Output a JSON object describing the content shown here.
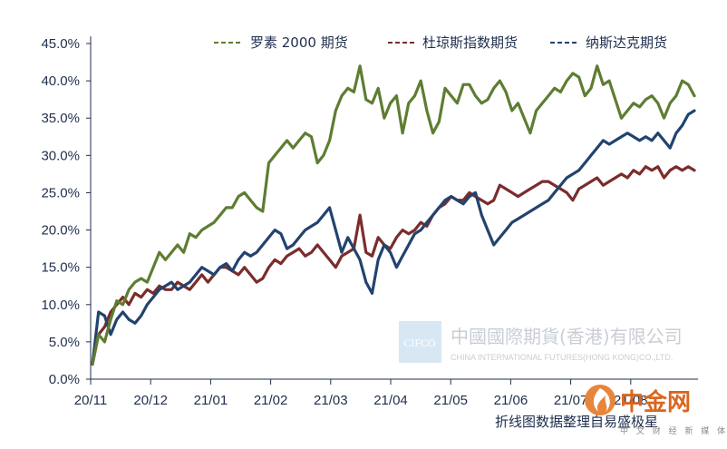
{
  "chart_data": {
    "type": "line",
    "title": "",
    "xlabel": "",
    "ylabel": "",
    "ylim": [
      0,
      0.45
    ],
    "y_ticks": [
      "0.0%",
      "5.0%",
      "10.0%",
      "15.0%",
      "20.0%",
      "25.0%",
      "30.0%",
      "35.0%",
      "40.0%",
      "45.0%"
    ],
    "x_ticks": [
      "20/11",
      "20/12",
      "21/01",
      "21/02",
      "21/03",
      "21/04",
      "21/05",
      "21/06",
      "21/07",
      "21/08"
    ],
    "grid": false,
    "legend_position": "top-right",
    "x_start": "2020-11-02",
    "series": [
      {
        "name": "罗素 2000 期货",
        "color": "#5e7d32",
        "dash": "dashed-legend",
        "values": [
          0.02,
          0.06,
          0.05,
          0.08,
          0.105,
          0.1,
          0.12,
          0.13,
          0.135,
          0.13,
          0.15,
          0.17,
          0.16,
          0.17,
          0.18,
          0.17,
          0.195,
          0.19,
          0.2,
          0.205,
          0.21,
          0.22,
          0.23,
          0.23,
          0.245,
          0.25,
          0.24,
          0.23,
          0.225,
          0.29,
          0.3,
          0.31,
          0.32,
          0.31,
          0.32,
          0.33,
          0.325,
          0.29,
          0.3,
          0.32,
          0.36,
          0.38,
          0.39,
          0.385,
          0.42,
          0.375,
          0.37,
          0.39,
          0.35,
          0.37,
          0.38,
          0.33,
          0.37,
          0.38,
          0.4,
          0.36,
          0.33,
          0.345,
          0.39,
          0.38,
          0.37,
          0.395,
          0.395,
          0.38,
          0.37,
          0.375,
          0.39,
          0.4,
          0.385,
          0.36,
          0.37,
          0.35,
          0.33,
          0.36,
          0.37,
          0.38,
          0.39,
          0.385,
          0.4,
          0.41,
          0.405,
          0.38,
          0.39,
          0.42,
          0.395,
          0.4,
          0.375,
          0.35,
          0.36,
          0.37,
          0.365,
          0.375,
          0.38,
          0.37,
          0.35,
          0.37,
          0.38,
          0.4,
          0.395,
          0.38
        ],
        "values_note": ""
      },
      {
        "name": "杜琼斯指数期货",
        "color": "#7b2c2c",
        "values": [
          0.02,
          0.06,
          0.07,
          0.09,
          0.1,
          0.11,
          0.1,
          0.115,
          0.11,
          0.12,
          0.115,
          0.125,
          0.12,
          0.12,
          0.13,
          0.125,
          0.12,
          0.13,
          0.14,
          0.13,
          0.14,
          0.15,
          0.15,
          0.145,
          0.14,
          0.15,
          0.14,
          0.13,
          0.135,
          0.15,
          0.16,
          0.155,
          0.165,
          0.17,
          0.175,
          0.165,
          0.17,
          0.18,
          0.17,
          0.16,
          0.15,
          0.165,
          0.17,
          0.175,
          0.22,
          0.17,
          0.165,
          0.19,
          0.18,
          0.175,
          0.19,
          0.2,
          0.195,
          0.2,
          0.21,
          0.205,
          0.22,
          0.23,
          0.235,
          0.245,
          0.24,
          0.24,
          0.25,
          0.245,
          0.24,
          0.235,
          0.24,
          0.26,
          0.255,
          0.25,
          0.245,
          0.25,
          0.255,
          0.26,
          0.265,
          0.265,
          0.26,
          0.255,
          0.25,
          0.24,
          0.255,
          0.26,
          0.265,
          0.27,
          0.26,
          0.265,
          0.27,
          0.275,
          0.27,
          0.28,
          0.275,
          0.285,
          0.28,
          0.285,
          0.27,
          0.28,
          0.285,
          0.28,
          0.285,
          0.28
        ],
        "values_note": ""
      },
      {
        "name": "纳斯达克期货",
        "color": "#22436e",
        "values": [
          0.02,
          0.09,
          0.085,
          0.06,
          0.08,
          0.09,
          0.08,
          0.075,
          0.085,
          0.1,
          0.11,
          0.12,
          0.125,
          0.13,
          0.12,
          0.125,
          0.13,
          0.14,
          0.15,
          0.145,
          0.14,
          0.15,
          0.155,
          0.145,
          0.16,
          0.17,
          0.165,
          0.17,
          0.18,
          0.19,
          0.2,
          0.195,
          0.175,
          0.18,
          0.19,
          0.2,
          0.205,
          0.21,
          0.22,
          0.23,
          0.2,
          0.17,
          0.19,
          0.175,
          0.16,
          0.13,
          0.115,
          0.16,
          0.18,
          0.17,
          0.15,
          0.165,
          0.18,
          0.195,
          0.2,
          0.21,
          0.22,
          0.23,
          0.24,
          0.245,
          0.24,
          0.235,
          0.245,
          0.25,
          0.22,
          0.2,
          0.18,
          0.19,
          0.2,
          0.21,
          0.215,
          0.22,
          0.225,
          0.23,
          0.235,
          0.24,
          0.25,
          0.26,
          0.27,
          0.275,
          0.28,
          0.29,
          0.3,
          0.31,
          0.32,
          0.315,
          0.32,
          0.325,
          0.33,
          0.325,
          0.32,
          0.325,
          0.32,
          0.33,
          0.32,
          0.31,
          0.33,
          0.34,
          0.355,
          0.36
        ],
        "values_note": ""
      }
    ]
  },
  "legend": {
    "items": [
      "罗素 2000 期货",
      "杜琼斯指数期货",
      "纳斯达克期货"
    ]
  },
  "watermark": {
    "box_text": "CIFCO",
    "line1": "中國國際期貨(香港)有限公司",
    "line2": "CHINA INTERNATIONAL FUTURES(HONG KONG)CO.,LTD."
  },
  "source_note": "折线图数据整理自易盛极星",
  "logo": {
    "name": "中金网",
    "tagline": "中 文 财 经 新 媒 体",
    "icon": "flame-logo-icon"
  }
}
